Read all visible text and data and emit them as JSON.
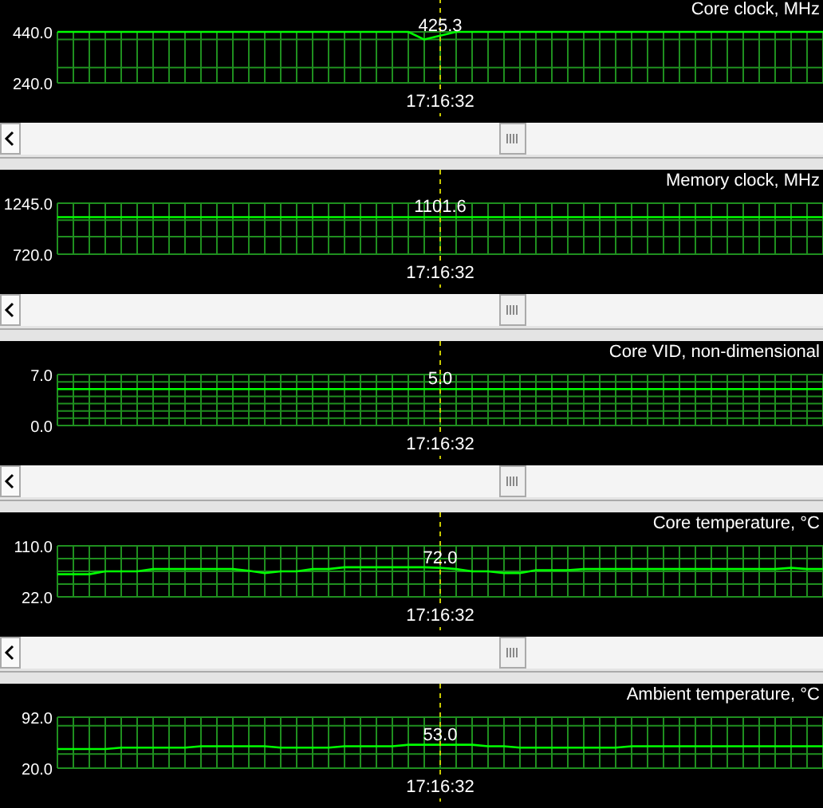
{
  "chart_data": [
    {
      "type": "line",
      "title": "Core clock, MHz",
      "categories": [
        null,
        null,
        null,
        null,
        null,
        null,
        null,
        null,
        null,
        null,
        null,
        null,
        null,
        null,
        null,
        null,
        null,
        null,
        null,
        null,
        null,
        null,
        null,
        null,
        null,
        null,
        null,
        null,
        null,
        null,
        null,
        null,
        null,
        null,
        null,
        null,
        null,
        null,
        null,
        null,
        null,
        null,
        null,
        null,
        null,
        null,
        null,
        null,
        null
      ],
      "series": [
        {
          "color": "#00ff00",
          "values": [
            440,
            440,
            440,
            440,
            440,
            440,
            440,
            440,
            440,
            440,
            440,
            440,
            440,
            440,
            440,
            440,
            440,
            440,
            440,
            440,
            440,
            440,
            440,
            410,
            425.3,
            440,
            440,
            440,
            440,
            440,
            440,
            440,
            440,
            440,
            440,
            440,
            440,
            440,
            440,
            440,
            440,
            440,
            440,
            440,
            440,
            440,
            440,
            440,
            440
          ],
          "value_labels": [
            null,
            null,
            null,
            null,
            null,
            null,
            null,
            null,
            null,
            null,
            null,
            null,
            null,
            null,
            null,
            null,
            null,
            null,
            null,
            null,
            null,
            null,
            null,
            null,
            "425.3",
            null,
            null,
            null,
            null,
            null,
            null,
            null,
            null,
            null,
            null,
            null,
            null,
            null,
            null,
            null,
            null,
            null,
            null,
            null,
            null,
            null,
            null,
            null,
            null
          ]
        }
      ],
      "ylim": [
        240,
        440
      ],
      "yticks": [
        {
          "value": 440,
          "label": "440.0"
        },
        {
          "value": 410,
          "label": null
        },
        {
          "value": 300,
          "label": null
        },
        {
          "value": 240,
          "label": "240.0"
        }
      ],
      "grid": true,
      "tick_labels": "y",
      "annotations": [
        "17:16:32"
      ]
    },
    {
      "type": "line",
      "title": "Memory clock, MHz",
      "categories": [
        null,
        null,
        null,
        null,
        null,
        null,
        null,
        null,
        null,
        null,
        null,
        null,
        null,
        null,
        null,
        null,
        null,
        null,
        null,
        null,
        null,
        null,
        null,
        null,
        null,
        null,
        null,
        null,
        null,
        null,
        null,
        null,
        null,
        null,
        null,
        null,
        null,
        null,
        null,
        null,
        null,
        null,
        null,
        null,
        null,
        null,
        null,
        null,
        null
      ],
      "series": [
        {
          "color": "#00ff00",
          "values": [
            1101.6,
            1101.6,
            1101.6,
            1101.6,
            1101.6,
            1101.6,
            1101.6,
            1101.6,
            1101.6,
            1101.6,
            1101.6,
            1101.6,
            1101.6,
            1101.6,
            1101.6,
            1101.6,
            1101.6,
            1101.6,
            1101.6,
            1101.6,
            1101.6,
            1101.6,
            1101.6,
            1101.6,
            1101.6,
            1101.6,
            1101.6,
            1101.6,
            1101.6,
            1101.6,
            1101.6,
            1101.6,
            1101.6,
            1101.6,
            1101.6,
            1101.6,
            1101.6,
            1101.6,
            1101.6,
            1101.6,
            1101.6,
            1101.6,
            1101.6,
            1101.6,
            1101.6,
            1101.6,
            1101.6,
            1101.6,
            1101.6
          ],
          "value_labels": [
            null,
            null,
            null,
            null,
            null,
            null,
            null,
            null,
            null,
            null,
            null,
            null,
            null,
            null,
            null,
            null,
            null,
            null,
            null,
            null,
            null,
            null,
            null,
            null,
            "1101.6",
            null,
            null,
            null,
            null,
            null,
            null,
            null,
            null,
            null,
            null,
            null,
            null,
            null,
            null,
            null,
            null,
            null,
            null,
            null,
            null,
            null,
            null,
            null,
            null
          ]
        }
      ],
      "ylim": [
        720,
        1245
      ],
      "yticks": [
        {
          "value": 1245,
          "label": "1245.0"
        },
        {
          "value": 1070,
          "label": null
        },
        {
          "value": 900,
          "label": null
        },
        {
          "value": 720,
          "label": "720.0"
        }
      ],
      "grid": true,
      "tick_labels": "y",
      "annotations": [
        "17:16:32"
      ]
    },
    {
      "type": "line",
      "title": "Core VID, non-dimensional",
      "categories": [
        null,
        null,
        null,
        null,
        null,
        null,
        null,
        null,
        null,
        null,
        null,
        null,
        null,
        null,
        null,
        null,
        null,
        null,
        null,
        null,
        null,
        null,
        null,
        null,
        null,
        null,
        null,
        null,
        null,
        null,
        null,
        null,
        null,
        null,
        null,
        null,
        null,
        null,
        null,
        null,
        null,
        null,
        null,
        null,
        null,
        null,
        null,
        null,
        null
      ],
      "series": [
        {
          "color": "#00ff00",
          "values": [
            5,
            5,
            5,
            5,
            5,
            5,
            5,
            5,
            5,
            5,
            5,
            5,
            5,
            5,
            5,
            5,
            5,
            5,
            5,
            5,
            5,
            5,
            5,
            5,
            5,
            5,
            5,
            5,
            5,
            5,
            5,
            5,
            5,
            5,
            5,
            5,
            5,
            5,
            5,
            5,
            5,
            5,
            5,
            5,
            5,
            5,
            5,
            5,
            5
          ],
          "value_labels": [
            null,
            null,
            null,
            null,
            null,
            null,
            null,
            null,
            null,
            null,
            null,
            null,
            null,
            null,
            null,
            null,
            null,
            null,
            null,
            null,
            null,
            null,
            null,
            null,
            "5.0",
            null,
            null,
            null,
            null,
            null,
            null,
            null,
            null,
            null,
            null,
            null,
            null,
            null,
            null,
            null,
            null,
            null,
            null,
            null,
            null,
            null,
            null,
            null,
            null
          ]
        }
      ],
      "ylim": [
        0,
        7
      ],
      "yticks": [
        {
          "value": 7,
          "label": "7.0"
        },
        {
          "value": 6,
          "label": null
        },
        {
          "value": 5,
          "label": null
        },
        {
          "value": 4,
          "label": null
        },
        {
          "value": 3,
          "label": null
        },
        {
          "value": 2,
          "label": null
        },
        {
          "value": 1,
          "label": null
        },
        {
          "value": 0,
          "label": "0.0"
        }
      ],
      "grid": true,
      "tick_labels": "y",
      "annotations": [
        "17:16:32"
      ]
    },
    {
      "type": "line",
      "title": "Core temperature, °C",
      "categories": [
        null,
        null,
        null,
        null,
        null,
        null,
        null,
        null,
        null,
        null,
        null,
        null,
        null,
        null,
        null,
        null,
        null,
        null,
        null,
        null,
        null,
        null,
        null,
        null,
        null,
        null,
        null,
        null,
        null,
        null,
        null,
        null,
        null,
        null,
        null,
        null,
        null,
        null,
        null,
        null,
        null,
        null,
        null,
        null,
        null,
        null,
        null,
        null,
        null
      ],
      "series": [
        {
          "color": "#00ff00",
          "values": [
            61,
            61,
            61,
            66,
            66,
            66,
            70,
            70,
            70,
            70,
            70,
            70,
            67,
            63,
            66,
            66,
            70,
            70,
            73,
            73,
            73,
            73,
            73,
            73,
            72,
            70,
            66,
            66,
            63,
            63,
            68,
            68,
            68,
            70,
            70,
            70,
            70,
            70,
            70,
            70,
            70,
            70,
            70,
            70,
            70,
            70,
            72,
            70,
            70
          ],
          "value_labels": [
            null,
            null,
            null,
            null,
            null,
            null,
            null,
            null,
            null,
            null,
            null,
            null,
            null,
            null,
            null,
            null,
            null,
            null,
            null,
            null,
            null,
            null,
            null,
            null,
            "72.0",
            null,
            null,
            null,
            null,
            null,
            null,
            null,
            null,
            null,
            null,
            null,
            null,
            null,
            null,
            null,
            null,
            null,
            null,
            null,
            null,
            null,
            null,
            null,
            null
          ]
        }
      ],
      "ylim": [
        22,
        110
      ],
      "yticks": [
        {
          "value": 110,
          "label": "110.0"
        },
        {
          "value": 88,
          "label": null
        },
        {
          "value": 66,
          "label": null
        },
        {
          "value": 44,
          "label": null
        },
        {
          "value": 22,
          "label": "22.0"
        }
      ],
      "grid": true,
      "tick_labels": "y",
      "annotations": [
        "17:16:32"
      ]
    },
    {
      "type": "line",
      "title": "Ambient temperature, °C",
      "categories": [
        null,
        null,
        null,
        null,
        null,
        null,
        null,
        null,
        null,
        null,
        null,
        null,
        null,
        null,
        null,
        null,
        null,
        null,
        null,
        null,
        null,
        null,
        null,
        null,
        null,
        null,
        null,
        null,
        null,
        null,
        null,
        null,
        null,
        null,
        null,
        null,
        null,
        null,
        null,
        null,
        null,
        null,
        null,
        null,
        null,
        null,
        null,
        null,
        null
      ],
      "series": [
        {
          "color": "#00ff00",
          "values": [
            47,
            47,
            47,
            47,
            49,
            49,
            49,
            49,
            49,
            51,
            51,
            51,
            51,
            51,
            49,
            49,
            49,
            49,
            51,
            51,
            51,
            51,
            53,
            53,
            53,
            53,
            53,
            51,
            51,
            49,
            49,
            49,
            49,
            49,
            49,
            49,
            51,
            51,
            51,
            51,
            51,
            51,
            51,
            51,
            51,
            51,
            51,
            51,
            51
          ],
          "value_labels": [
            null,
            null,
            null,
            null,
            null,
            null,
            null,
            null,
            null,
            null,
            null,
            null,
            null,
            null,
            null,
            null,
            null,
            null,
            null,
            null,
            null,
            null,
            null,
            null,
            "53.0",
            null,
            null,
            null,
            null,
            null,
            null,
            null,
            null,
            null,
            null,
            null,
            null,
            null,
            null,
            null,
            null,
            null,
            null,
            null,
            null,
            null,
            null,
            null,
            null
          ]
        }
      ],
      "ylim": [
        20,
        92
      ],
      "yticks": [
        {
          "value": 92,
          "label": "92.0"
        },
        {
          "value": 80,
          "label": null
        },
        {
          "value": 40,
          "label": null
        },
        {
          "value": 20,
          "label": "20.0"
        }
      ],
      "grid": true,
      "tick_labels": "y",
      "annotations": [
        "17:16:32"
      ]
    }
  ]
}
